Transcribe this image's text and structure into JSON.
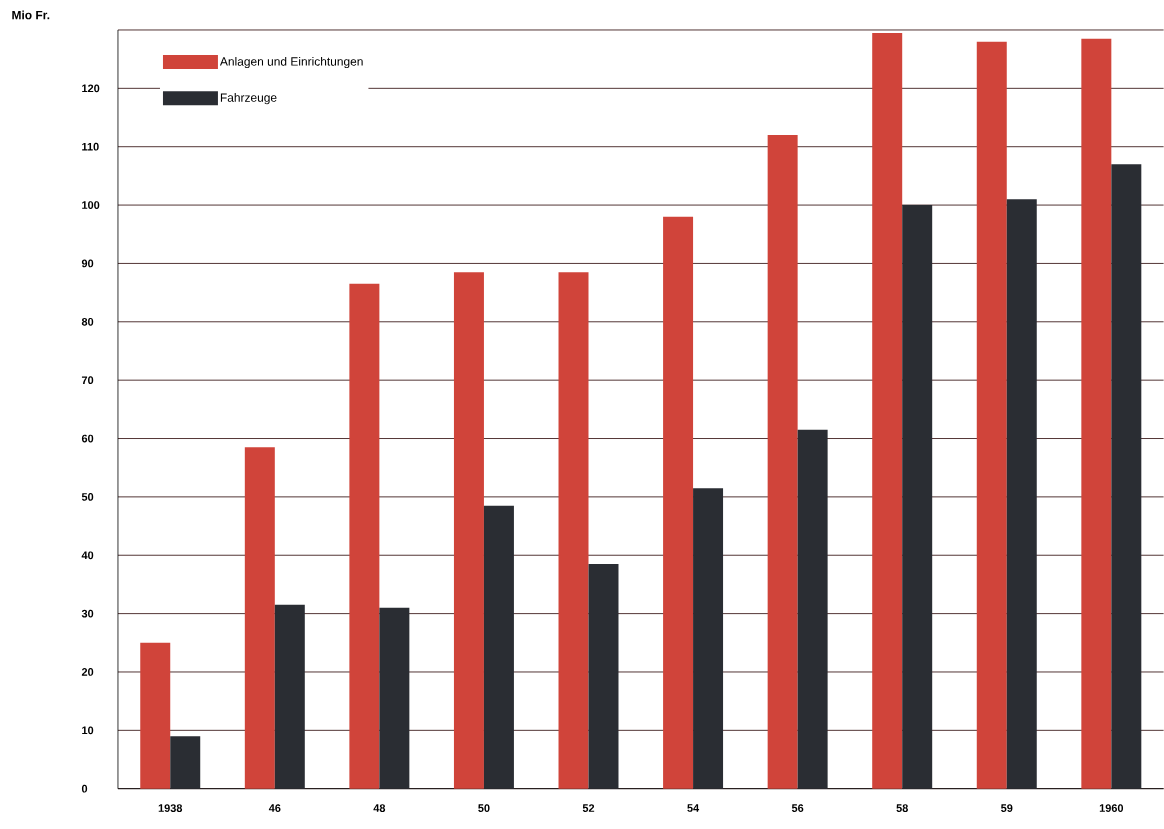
{
  "chart_data": {
    "type": "bar",
    "ylabel": "Mio Fr.",
    "categories": [
      "1938",
      "46",
      "48",
      "50",
      "52",
      "54",
      "56",
      "58",
      "59",
      "1960"
    ],
    "series": [
      {
        "name": "Anlagen und Einrichtungen",
        "color": "#d0443a",
        "values": [
          25,
          58.5,
          86.5,
          88.5,
          88.5,
          98,
          112,
          129.5,
          128,
          128.5
        ]
      },
      {
        "name": "Fahrzeuge",
        "color": "#2a2d33",
        "values": [
          9,
          31.5,
          31,
          48.5,
          38.5,
          51.5,
          61.5,
          100,
          101,
          107
        ]
      }
    ],
    "ylim": [
      0,
      130
    ],
    "yticks": [
      0,
      10,
      20,
      30,
      40,
      50,
      60,
      70,
      80,
      90,
      100,
      110,
      120,
      {
        "value": 130,
        "label": null
      }
    ],
    "grid": "y",
    "legend": "top left"
  }
}
